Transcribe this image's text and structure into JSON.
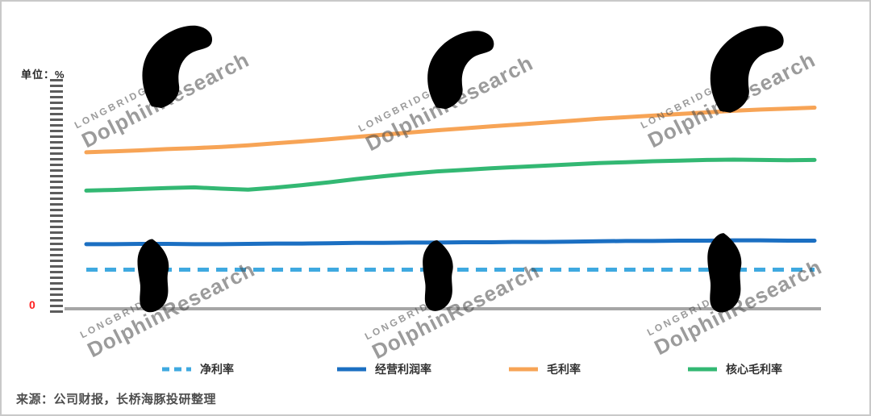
{
  "header": {
    "unit_label": "单位：%"
  },
  "axis": {
    "origin_label": "0"
  },
  "watermark": {
    "brand": "LONGBRIDGE",
    "name": "DolphinResearch"
  },
  "legend": {
    "items": [
      {
        "label": "净利率",
        "color": "#3FA9E0",
        "style": "dashed"
      },
      {
        "label": "经营利润率",
        "color": "#1B6FC2",
        "style": "solid"
      },
      {
        "label": "毛利率",
        "color": "#F7A456",
        "style": "solid"
      },
      {
        "label": "核心毛利率",
        "color": "#33B873",
        "style": "solid"
      }
    ]
  },
  "footer": {
    "source": "来源：公司财报，长桥海豚投研整理"
  },
  "chart_data": {
    "type": "line",
    "title": "",
    "xlabel": "",
    "ylabel": "单位：%",
    "ylim": [
      0,
      70
    ],
    "grid": false,
    "legend_position": "bottom",
    "x_count": 28,
    "x_labels": [],
    "series": [
      {
        "name": "毛利率",
        "color": "#F7A456",
        "style": "solid",
        "values": [
          48.8,
          49.1,
          49.4,
          49.8,
          50.1,
          50.5,
          51.0,
          51.6,
          52.2,
          52.9,
          53.6,
          54.3,
          55.0,
          55.7,
          56.3,
          56.9,
          57.5,
          58.1,
          58.7,
          59.3,
          59.8,
          60.3,
          60.8,
          61.3,
          61.8,
          62.2,
          62.5,
          62.8
        ]
      },
      {
        "name": "核心毛利率",
        "color": "#33B873",
        "style": "solid",
        "values": [
          36.8,
          37.0,
          37.3,
          37.6,
          37.8,
          37.4,
          37.1,
          37.7,
          38.5,
          39.4,
          40.4,
          41.3,
          42.1,
          42.8,
          43.3,
          43.8,
          44.2,
          44.6,
          45.0,
          45.4,
          45.7,
          46.0,
          46.2,
          46.4,
          46.5,
          46.4,
          46.3,
          46.4
        ]
      },
      {
        "name": "经营利润率",
        "color": "#1B6FC2",
        "style": "solid",
        "values": [
          20.0,
          20.0,
          20.1,
          20.1,
          20.0,
          20.0,
          20.1,
          20.2,
          20.2,
          20.3,
          20.4,
          20.4,
          20.5,
          20.5,
          20.6,
          20.6,
          20.7,
          20.7,
          20.8,
          20.9,
          21.0,
          21.0,
          21.1,
          21.1,
          21.2,
          21.2,
          21.1,
          21.1
        ]
      },
      {
        "name": "净利率",
        "color": "#3FA9E0",
        "style": "dashed",
        "values": [
          12.0,
          12.0,
          12.0,
          12.0,
          12.0,
          12.0,
          12.0,
          12.0,
          12.0,
          12.0,
          12.0,
          12.0,
          12.0,
          12.0,
          12.0,
          12.0,
          12.0,
          12.0,
          12.0,
          12.0,
          12.0,
          12.0,
          12.0,
          12.0,
          12.0,
          12.0,
          12.0,
          12.0
        ]
      }
    ]
  }
}
